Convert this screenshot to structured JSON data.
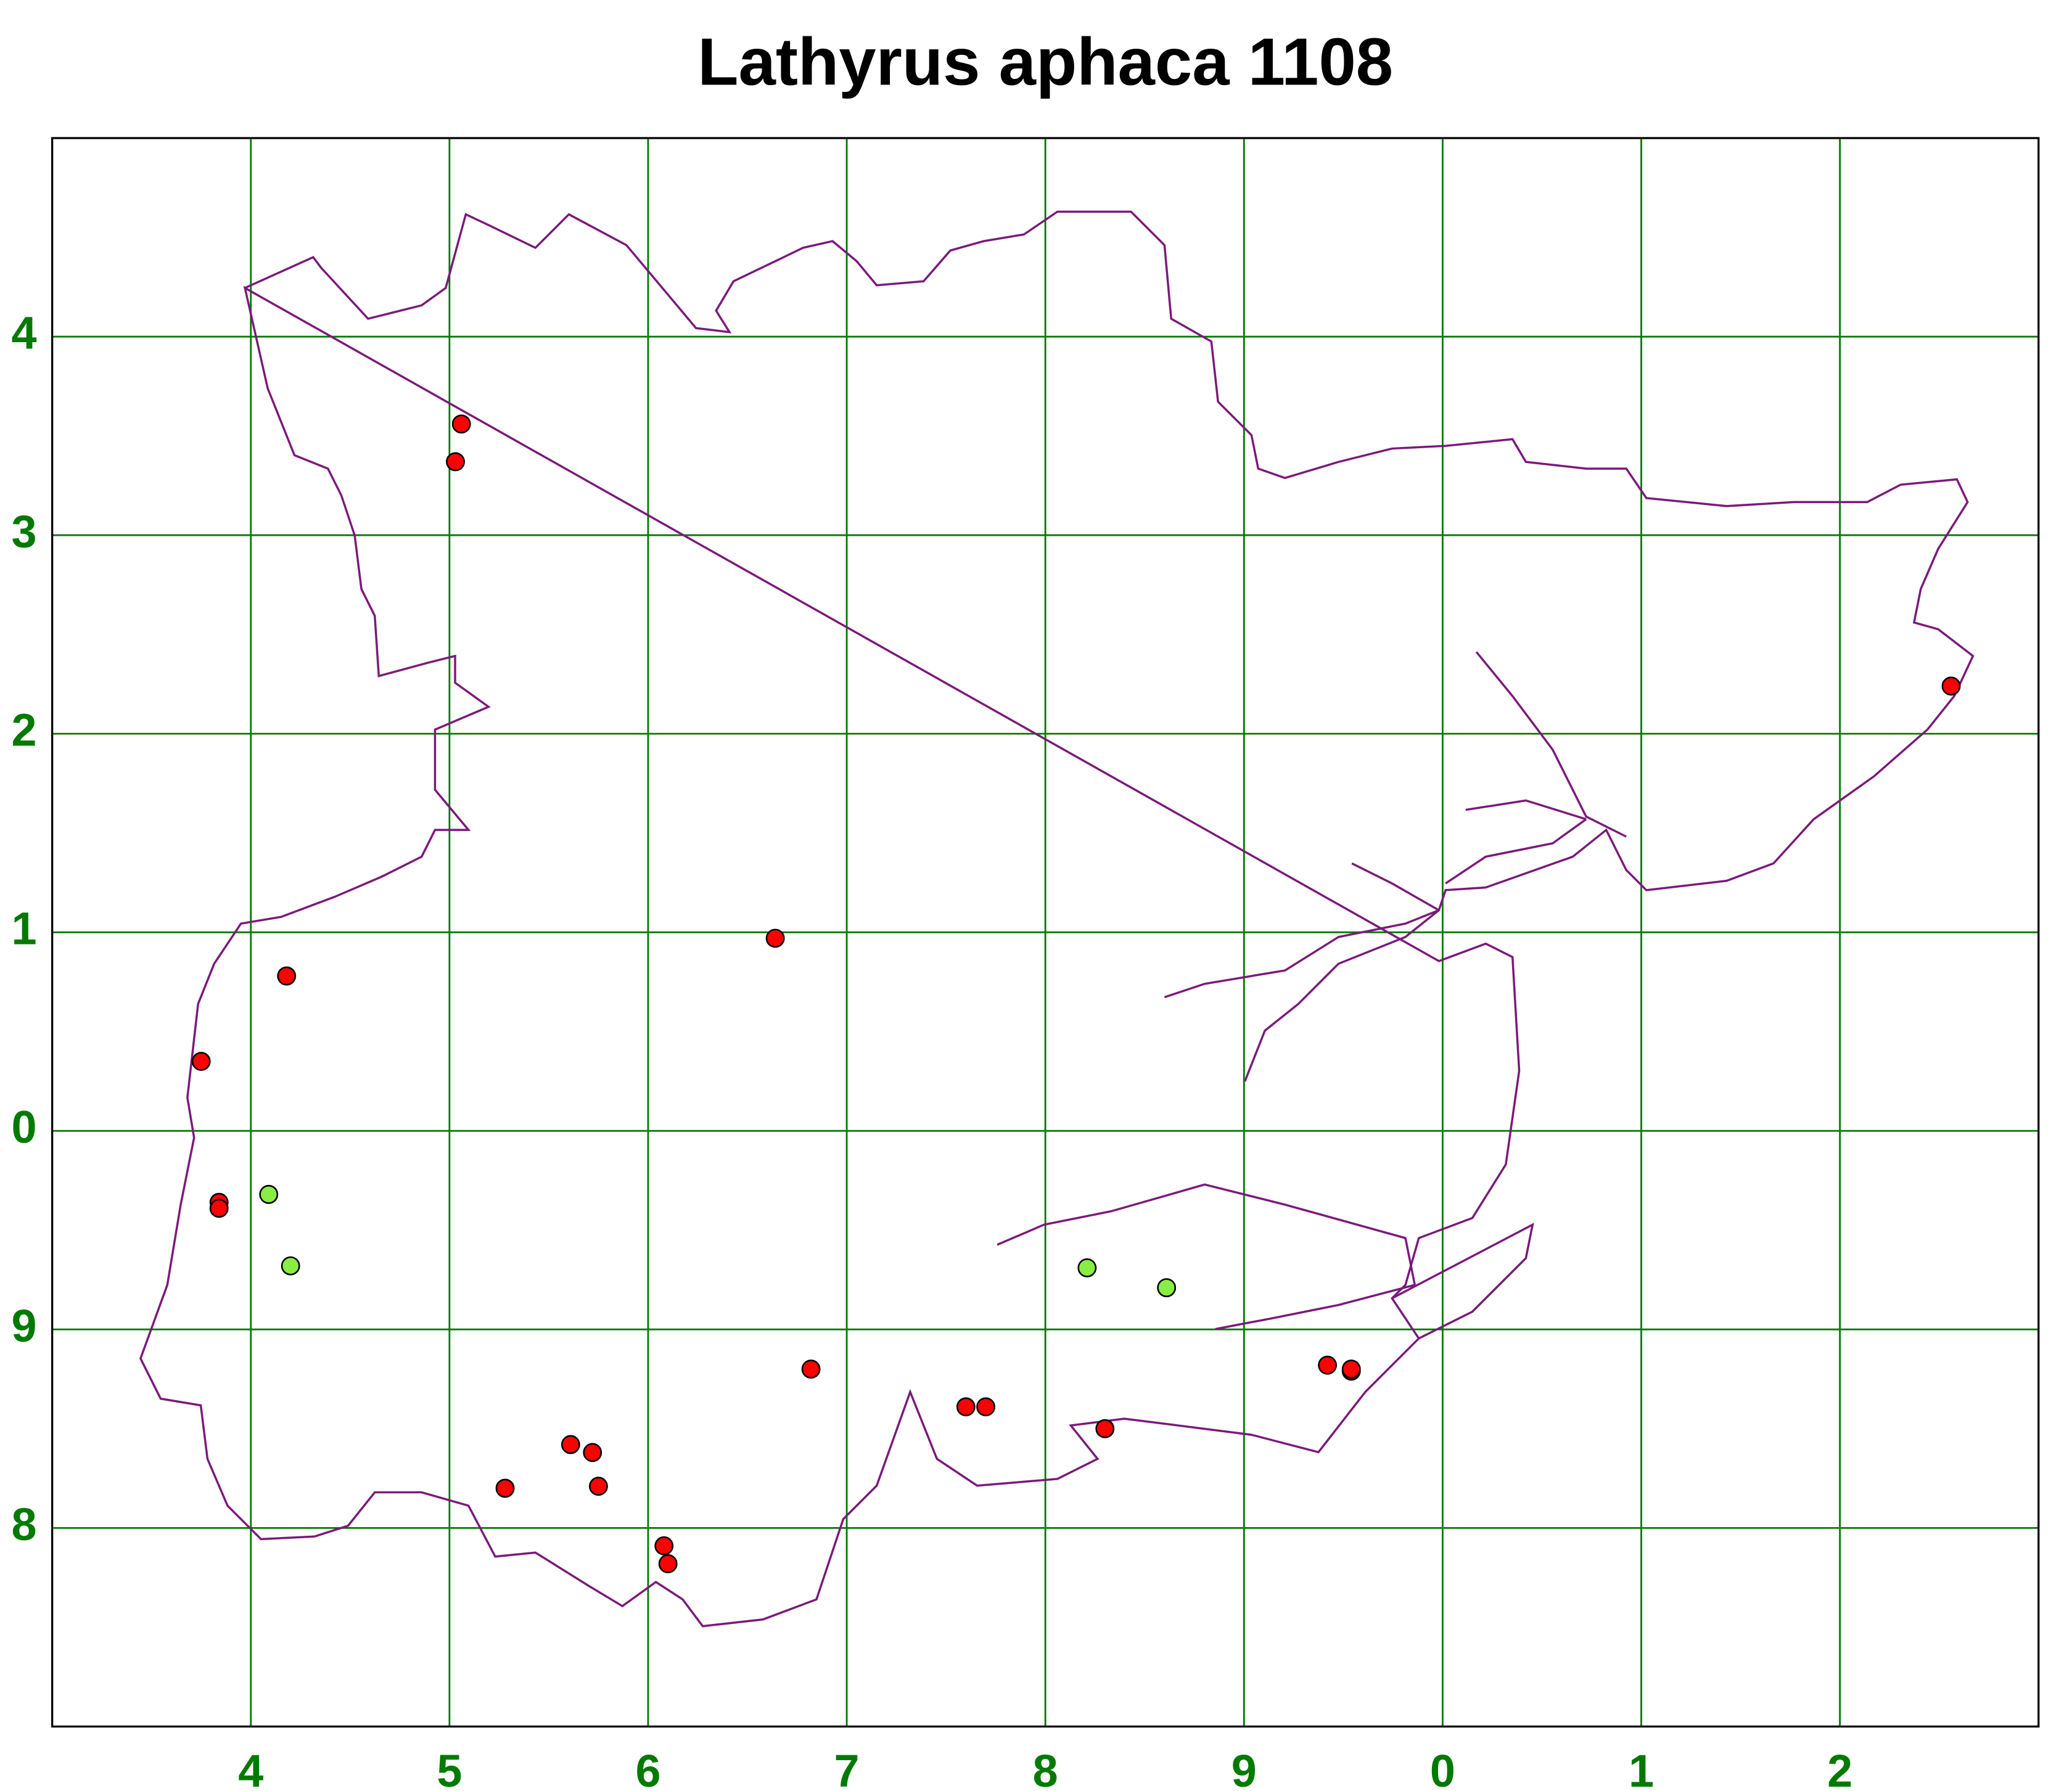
{
  "chart_data": {
    "type": "scatter",
    "title": "Lathyrus aphaca 1108",
    "xlim": [
      3,
      13
    ],
    "ylim": [
      -3,
      5
    ],
    "grid": true,
    "grid_color": "#007a00",
    "xticks": [
      4,
      5,
      6,
      7,
      8,
      9,
      {
        "value": 10,
        "label": "0"
      },
      {
        "value": 11,
        "label": "1"
      },
      {
        "value": 12,
        "label": "2"
      }
    ],
    "yticks": [
      4,
      3,
      2,
      1,
      0,
      {
        "value": -1,
        "label": "9"
      },
      {
        "value": -2,
        "label": "8"
      }
    ],
    "series": [
      {
        "color": "#ff0000",
        "x": [
          5.06,
          5.03,
          6.64,
          4.18,
          3.75,
          3.84,
          3.84,
          6.82,
          9.42,
          9.54,
          9.54,
          7.6,
          7.7,
          8.3,
          5.61,
          5.72,
          5.75,
          5.28,
          6.08,
          6.1,
          12.56
        ],
        "y": [
          3.56,
          3.37,
          0.97,
          0.78,
          0.35,
          -0.36,
          -0.39,
          -1.2,
          -1.18,
          -1.21,
          -1.2,
          -1.39,
          -1.39,
          -1.5,
          -1.58,
          -1.62,
          -1.79,
          -1.8,
          -2.09,
          -2.18,
          2.24
        ]
      },
      {
        "color": "#88ee44",
        "x": [
          4.09,
          4.2,
          8.21,
          8.61
        ],
        "y": [
          -0.32,
          -0.68,
          -0.69,
          -0.79
        ]
      }
    ]
  }
}
